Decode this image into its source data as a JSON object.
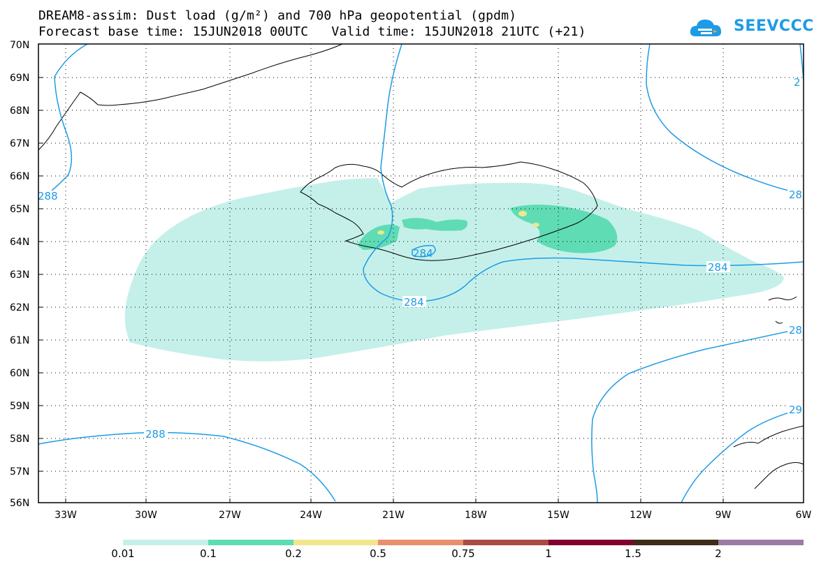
{
  "title": {
    "line1": "DREAM8-assim: Dust load (g/m²) and 700 hPa geopotential (gpdm)",
    "line2": "Forecast base time: 15JUN2018 00UTC   Valid time: 15JUN2018 21UTC (+21)"
  },
  "logo": {
    "text": "SEEVCCC"
  },
  "map": {
    "lat_labels": [
      "70N",
      "69N",
      "68N",
      "67N",
      "66N",
      "65N",
      "64N",
      "63N",
      "62N",
      "61N",
      "60N",
      "59N",
      "58N",
      "57N",
      "56N"
    ],
    "lon_labels": [
      "33W",
      "30W",
      "27W",
      "24W",
      "21W",
      "18W",
      "15W",
      "12W",
      "9W",
      "6W"
    ],
    "contour_labels": {
      "c288_left": "288",
      "c288_bottom": "288",
      "c284_center": "284",
      "c284_right": "284",
      "c284_small": "284",
      "c28_right_top": "28",
      "c28_right_mid": "28",
      "c29_right": "29",
      "c2_top_right": "2"
    },
    "colors": {
      "contour": "#1e9be6",
      "dust_01": "#c5f0ea",
      "dust_02": "#5fdcb4",
      "dust_05": "#f0e68c"
    }
  },
  "colorbar": {
    "labels": [
      "0.01",
      "0.1",
      "0.2",
      "0.5",
      "0.75",
      "1",
      "1.5",
      "2"
    ],
    "colors": [
      "#c5f0ea",
      "#5fdcb4",
      "#f0e68c",
      "#e8906e",
      "#a84d46",
      "#800030",
      "#3e2b18",
      "#9c7aa6"
    ]
  }
}
